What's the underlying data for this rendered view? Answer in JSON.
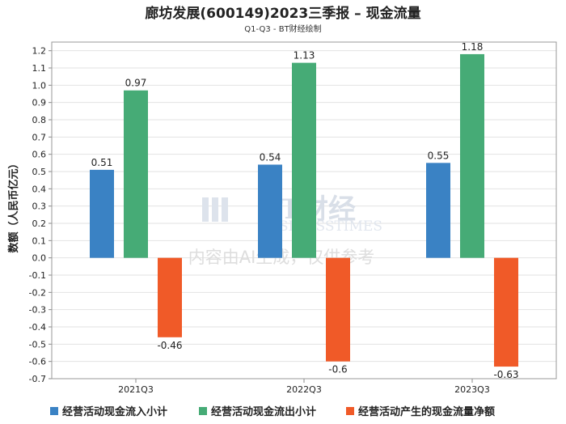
{
  "chart_data": {
    "type": "bar",
    "title": "廊坊发展(600149)2023三季报 – 现金流量",
    "subtitle": "Q1-Q3 - BT财经绘制",
    "ylabel": "数额（人民币亿元）",
    "xlabel": "",
    "categories": [
      "2021Q3",
      "2022Q3",
      "2023Q3"
    ],
    "ylim": [
      -0.7,
      1.25
    ],
    "yticks": [
      1.2,
      1.1,
      1.0,
      0.9,
      0.8,
      0.7,
      0.6,
      0.5,
      0.4,
      0.3,
      0.2,
      0.1,
      0.0,
      -0.1,
      -0.2,
      -0.3,
      -0.4,
      -0.5,
      -0.6,
      -0.7
    ],
    "ytick_labels": [
      "1.2",
      "1.1",
      "1.0",
      "0.9",
      "0.8",
      "0.7",
      "0.6",
      "0.5",
      "0.4",
      "0.3",
      "0.2",
      "0.1",
      "0.0",
      "-0.1",
      "-0.2",
      "-0.3",
      "-0.4",
      "-0.5",
      "-0.6",
      "-0.7"
    ],
    "series": [
      {
        "name": "经营活动现金流入小计",
        "color": "#3a82c4",
        "values": [
          0.51,
          0.54,
          0.55
        ],
        "labels": [
          "0.51",
          "0.54",
          "0.55"
        ]
      },
      {
        "name": "经营活动现金流出小计",
        "color": "#46ab76",
        "values": [
          0.97,
          1.13,
          1.18
        ],
        "labels": [
          "0.97",
          "1.13",
          "1.18"
        ]
      },
      {
        "name": "经营活动产生的现金流量净额",
        "color": "#f05a28",
        "values": [
          -0.46,
          -0.6,
          -0.63
        ],
        "labels": [
          "-0.46",
          "-0.6",
          "-0.63"
        ]
      }
    ],
    "legend_position": "bottom",
    "grid": true
  },
  "watermark": {
    "brand": "BT财经",
    "brand_sub": "BUSINESSTIMES",
    "disclaimer": "内容由AI生成，仅供参考"
  }
}
